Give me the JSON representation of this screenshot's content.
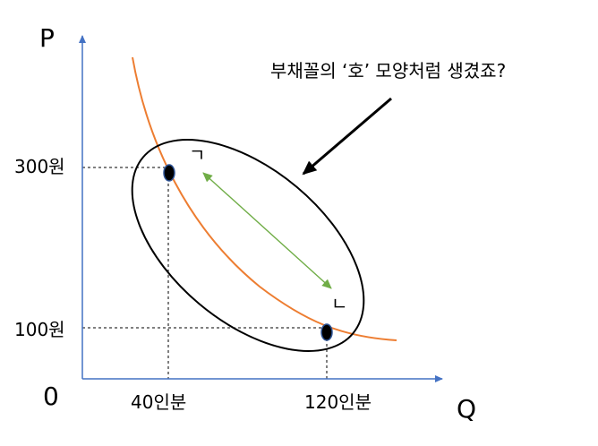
{
  "labels": {
    "y_axis": "P",
    "x_axis": "Q",
    "origin": "0",
    "price_high": "300원",
    "price_low": "100원",
    "qty_low": "40인분",
    "qty_high": "120인분",
    "annotation": "부채꼴의 ‘호’ 모양처럼 생겼죠?",
    "corner_mark_top": "ㄱ",
    "corner_mark_bottom": "ㄴ"
  },
  "points": [
    {
      "quantity": "40인분",
      "price": "300원"
    },
    {
      "quantity": "120인분",
      "price": "100원"
    }
  ],
  "colors": {
    "axis": "#4472c4",
    "curve": "#ed7d31",
    "double_arrow": "#70ad47",
    "ellipse": "#000000",
    "point_fill": "#000000",
    "point_stroke": "#2f5597",
    "guide": "#000000"
  },
  "icons": {
    "pointer_arrow": "arrow-pointing-down-left",
    "range_arrow": "double-headed-arrow"
  }
}
